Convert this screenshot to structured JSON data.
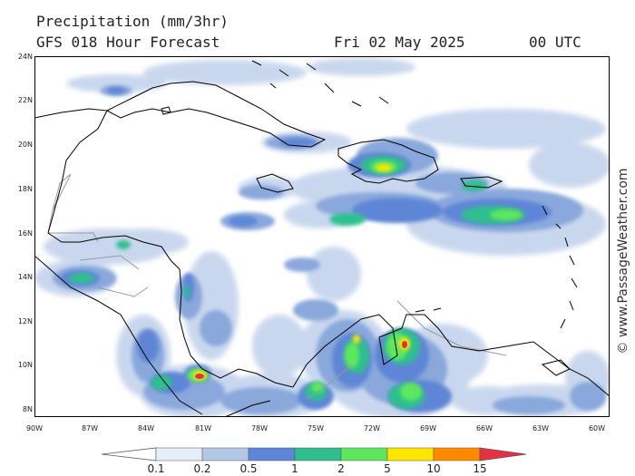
{
  "header": {
    "title": "Precipitation (mm/3hr)",
    "subtitle": "GFS 018 Hour Forecast",
    "date": "Fri 02 May 2025",
    "time": "00 UTC"
  },
  "map": {
    "lat_labels": [
      "24N",
      "22N",
      "20N",
      "18N",
      "16N",
      "14N",
      "12N",
      "10N",
      "8N"
    ],
    "lon_labels": [
      "90W",
      "87W",
      "84W",
      "81W",
      "78W",
      "75W",
      "72W",
      "69W",
      "66W",
      "63W",
      "60W"
    ],
    "credit": "© www.PassageWeather.com"
  },
  "legend": {
    "unit": "mm/3hr",
    "ticks": [
      "0.1",
      "0.2",
      "0.5",
      "1",
      "2",
      "5",
      "10",
      "15"
    ],
    "colors": [
      "#e8eef8",
      "#b4c6e6",
      "#5f86d6",
      "#2fbf8f",
      "#5ee65e",
      "#ffe600",
      "#ff8a00",
      "#e83040"
    ]
  },
  "colors": {
    "light_blue": "#c9d7ee",
    "mid_blue": "#8aa8dc",
    "blue": "#5f86d6",
    "teal": "#2fbf8f",
    "green": "#5ee65e",
    "yellow": "#ffe600",
    "red": "#e83040",
    "land_border": "#000000",
    "country_border": "#9a9a9a"
  }
}
